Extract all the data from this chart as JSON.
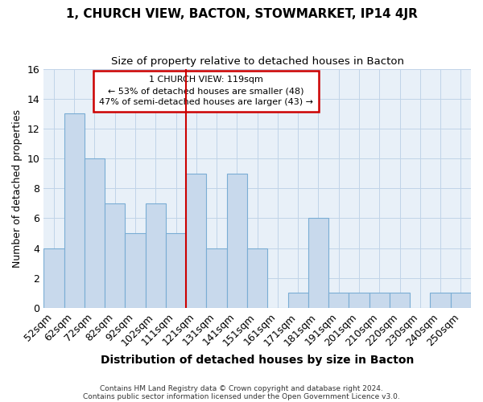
{
  "title": "1, CHURCH VIEW, BACTON, STOWMARKET, IP14 4JR",
  "subtitle": "Size of property relative to detached houses in Bacton",
  "xlabel": "Distribution of detached houses by size in Bacton",
  "ylabel": "Number of detached properties",
  "categories": [
    "52sqm",
    "62sqm",
    "72sqm",
    "82sqm",
    "92sqm",
    "102sqm",
    "111sqm",
    "121sqm",
    "131sqm",
    "141sqm",
    "151sqm",
    "161sqm",
    "171sqm",
    "181sqm",
    "191sqm",
    "201sqm",
    "210sqm",
    "220sqm",
    "230sqm",
    "240sqm",
    "250sqm"
  ],
  "values": [
    4,
    13,
    10,
    7,
    5,
    7,
    5,
    9,
    4,
    9,
    4,
    0,
    1,
    6,
    1,
    1,
    1,
    1,
    0,
    1,
    1
  ],
  "bar_color": "#c8d9ec",
  "bar_edge_color": "#7aadd4",
  "grid_color": "#c0d4e8",
  "background_color": "#e8f0f8",
  "vline_color": "#cc0000",
  "ylim": [
    0,
    16
  ],
  "yticks": [
    0,
    2,
    4,
    6,
    8,
    10,
    12,
    14,
    16
  ],
  "annotation_title": "1 CHURCH VIEW: 119sqm",
  "annotation_line1": "← 53% of detached houses are smaller (48)",
  "annotation_line2": "47% of semi-detached houses are larger (43) →",
  "annotation_box_color": "#ffffff",
  "annotation_box_edge": "#cc0000",
  "footnote1": "Contains HM Land Registry data © Crown copyright and database right 2024.",
  "footnote2": "Contains public sector information licensed under the Open Government Licence v3.0."
}
